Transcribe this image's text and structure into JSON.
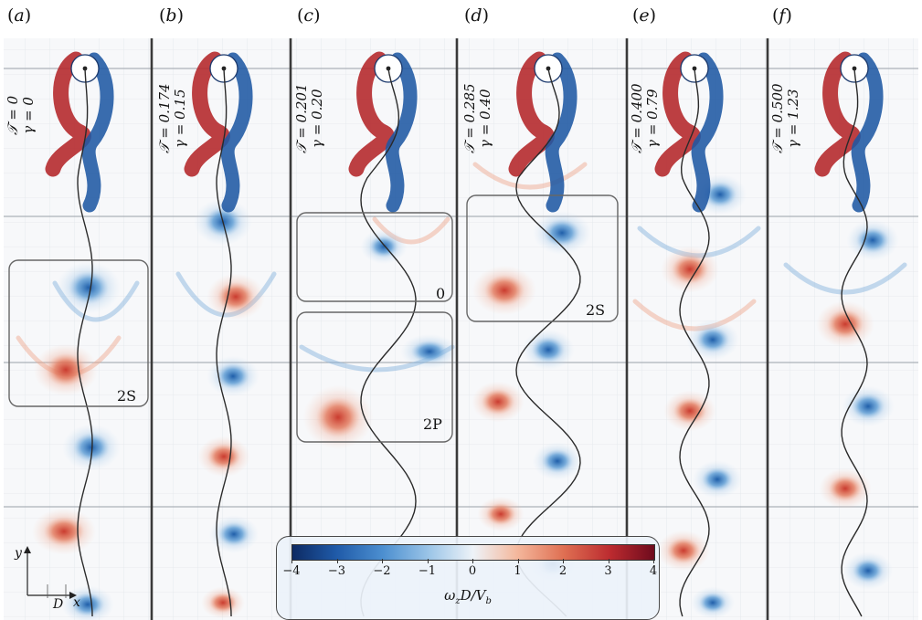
{
  "panels": [
    {
      "label_letter": "a",
      "T_text": "𝒯 = 0",
      "gamma_text": "γ = 0"
    },
    {
      "label_letter": "b",
      "T_text": "𝒯 = 0.174",
      "gamma_text": "γ = 0.15"
    },
    {
      "label_letter": "c",
      "T_text": "𝒯 = 0.201",
      "gamma_text": "γ = 0.20"
    },
    {
      "label_letter": "d",
      "T_text": "𝒯 = 0.285",
      "gamma_text": "γ = 0.40"
    },
    {
      "label_letter": "e",
      "T_text": "𝒯 = 0.400",
      "gamma_text": "γ = 0.79"
    },
    {
      "label_letter": "f",
      "T_text": "𝒯 = 0.500",
      "gamma_text": "γ = 1.23"
    }
  ],
  "box_labels": {
    "a_box": "2S",
    "c_box_top": "0",
    "c_box_bottom": "2P",
    "d_box": "2S"
  },
  "colorbar": {
    "ticks": [
      "−4",
      "−3",
      "−2",
      "−1",
      "0",
      "1",
      "2",
      "3",
      "4"
    ],
    "min": -4,
    "max": 4,
    "title": "ωzD/Vb",
    "colors": {
      "neg": "#1f5aa8",
      "pos": "#bb2a2f",
      "zero": "#f2f4f7"
    }
  },
  "axes_indicator": {
    "y": "y",
    "x": "x",
    "D": "D"
  }
}
